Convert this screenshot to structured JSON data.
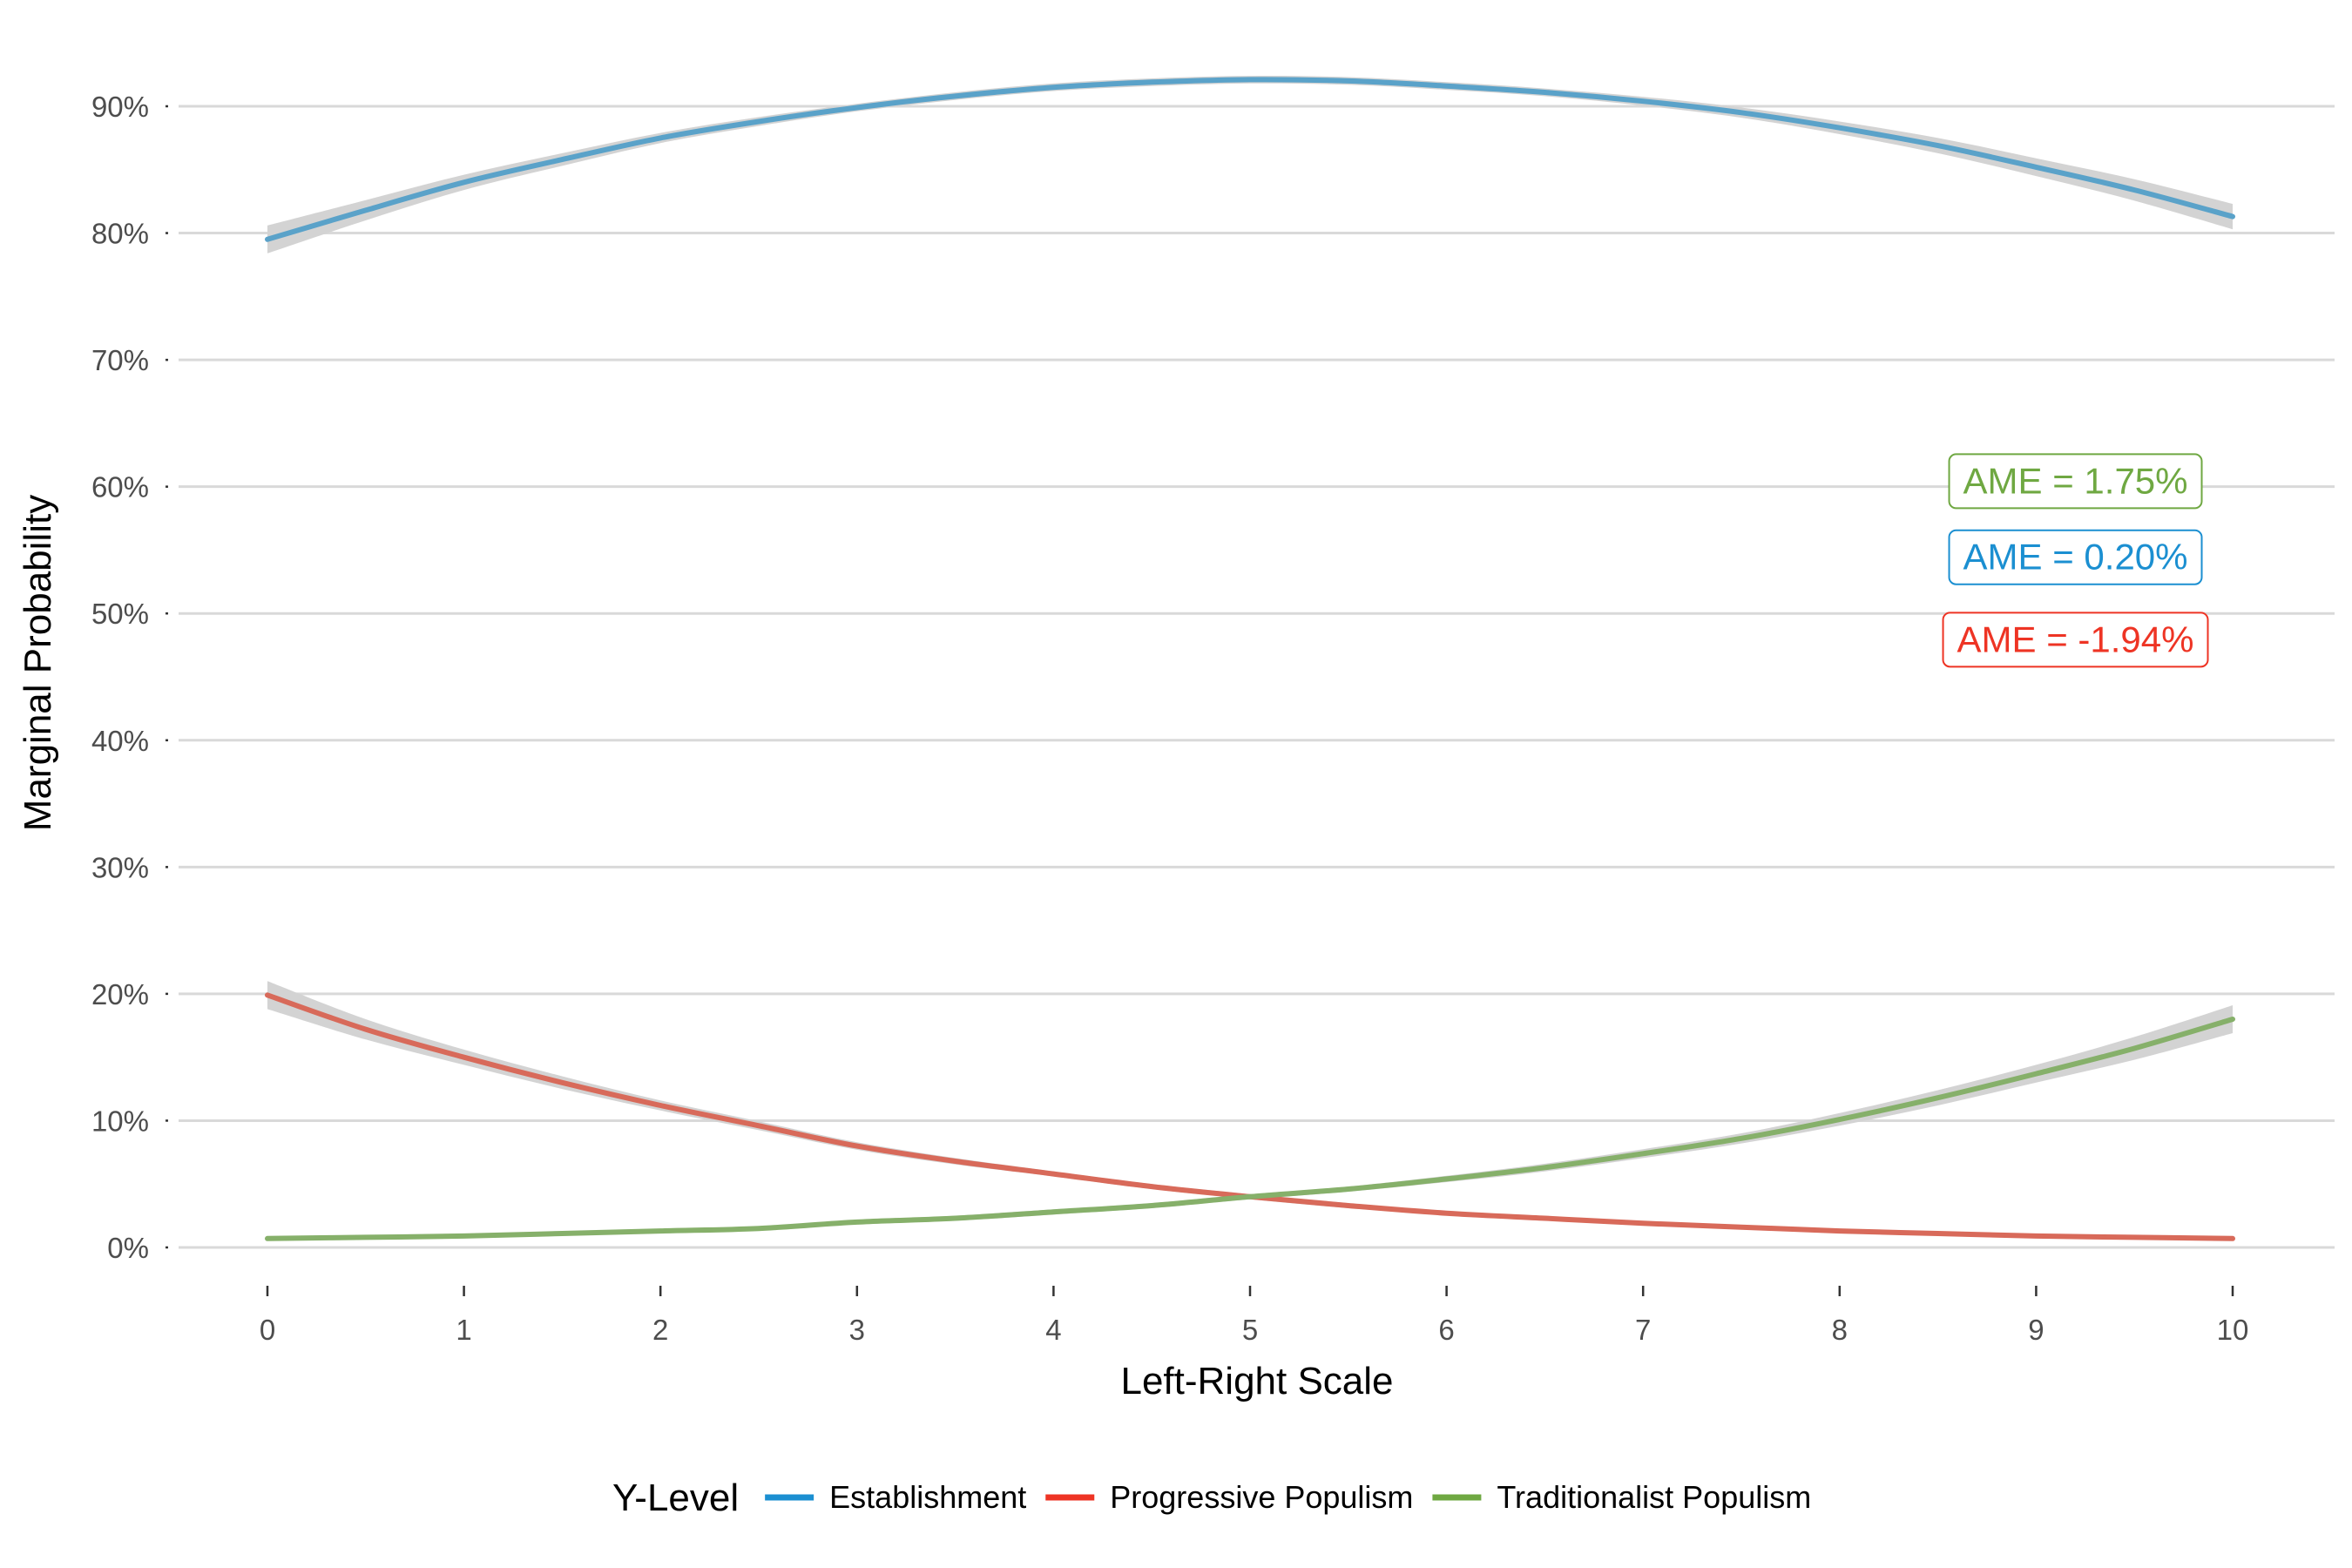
{
  "chart_data": {
    "type": "line",
    "title": "",
    "xlabel": "Left-Right Scale",
    "ylabel": "Marginal Probability",
    "x": [
      0,
      0.5,
      1,
      1.5,
      2,
      2.5,
      3,
      3.5,
      4,
      4.5,
      5,
      5.5,
      6,
      6.5,
      7,
      7.5,
      8,
      8.5,
      9,
      9.5,
      10
    ],
    "xlim": [
      0,
      10
    ],
    "x_ticks": [
      "0",
      "1",
      "2",
      "3",
      "4",
      "5",
      "6",
      "7",
      "8",
      "9",
      "10"
    ],
    "ylim": [
      0,
      90
    ],
    "y_ticks": [
      "0%",
      "10%",
      "20%",
      "30%",
      "40%",
      "50%",
      "60%",
      "70%",
      "80%",
      "90%"
    ],
    "grid": "horizontal major lines",
    "legend_title": "Y-Level",
    "legend_position": "bottom",
    "series": [
      {
        "name": "Establishment",
        "color": "#1b8fd1",
        "line_color": "#5aa2c9",
        "values": [
          79.5,
          81.8,
          84.0,
          85.8,
          87.5,
          88.8,
          89.9,
          90.8,
          91.5,
          91.9,
          92.1,
          92.0,
          91.6,
          91.1,
          90.4,
          89.5,
          88.3,
          86.9,
          85.2,
          83.4,
          81.3
        ],
        "ci_halfwidth": [
          1.1,
          0.8,
          0.6,
          0.5,
          0.4,
          0.35,
          0.3,
          0.3,
          0.3,
          0.3,
          0.3,
          0.3,
          0.3,
          0.3,
          0.35,
          0.4,
          0.5,
          0.6,
          0.7,
          0.85,
          1.0
        ]
      },
      {
        "name": "Progressive Populism",
        "color": "#ee3424",
        "line_color": "#d86a5a",
        "values": [
          19.9,
          17.2,
          15.0,
          13.0,
          11.2,
          9.6,
          8.0,
          6.8,
          5.8,
          4.8,
          4.0,
          3.3,
          2.7,
          2.3,
          1.9,
          1.6,
          1.3,
          1.1,
          0.9,
          0.8,
          0.7
        ],
        "ci_halfwidth": [
          1.1,
          0.8,
          0.6,
          0.5,
          0.4,
          0.35,
          0.3,
          0.25,
          0.2,
          0.2,
          0.2,
          0.2,
          0.15,
          0.15,
          0.15,
          0.1,
          0.1,
          0.1,
          0.1,
          0.1,
          0.1
        ]
      },
      {
        "name": "Traditionalist Populism",
        "color": "#6fa842",
        "line_color": "#86b06a",
        "values": [
          0.7,
          0.8,
          0.9,
          1.1,
          1.3,
          1.5,
          2.0,
          2.3,
          2.8,
          3.3,
          4.0,
          4.6,
          5.4,
          6.3,
          7.4,
          8.6,
          10.1,
          11.8,
          13.7,
          15.7,
          18.0
        ],
        "ci_halfwidth": [
          0.1,
          0.1,
          0.1,
          0.1,
          0.1,
          0.15,
          0.15,
          0.2,
          0.2,
          0.2,
          0.2,
          0.2,
          0.25,
          0.3,
          0.35,
          0.4,
          0.5,
          0.6,
          0.7,
          0.9,
          1.1
        ]
      }
    ],
    "annotations": [
      {
        "text": "AME = 1.75%",
        "series": "Traditionalist Populism",
        "color": "#6fa842",
        "x": 9.2,
        "y": 60.5
      },
      {
        "text": "AME = 0.20%",
        "series": "Establishment",
        "color": "#1b8fd1",
        "x": 9.2,
        "y": 54.5
      },
      {
        "text": "AME = -1.94%",
        "series": "Progressive Populism",
        "color": "#ee3424",
        "x": 9.2,
        "y": 48.0
      }
    ],
    "ci_color": "#d3d3d3"
  }
}
